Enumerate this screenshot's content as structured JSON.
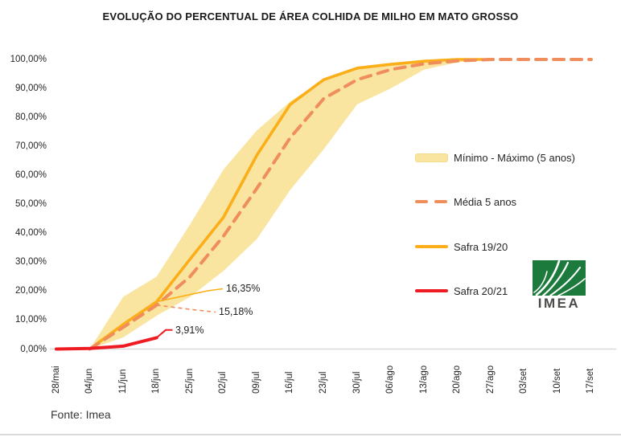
{
  "page": {
    "title": "EVOLUÇÃO DO PERCENTUAL DE ÁREA COLHIDA DE MILHO EM MATO GROSSO",
    "source": "Fonte: Imea"
  },
  "logo": {
    "text": "IMEA"
  },
  "legend": {
    "items": [
      {
        "label": "Mínimo - Máximo (5 anos)",
        "type": "band",
        "color": "#F9E4A0"
      },
      {
        "label": "Média 5 anos",
        "type": "dashed-line",
        "color": "#EF8E5C"
      },
      {
        "label": "Safra 19/20",
        "type": "line",
        "color": "#FBAE17"
      },
      {
        "label": "Safra 20/21",
        "type": "line",
        "color": "#EF1B23"
      }
    ]
  },
  "chart_data": {
    "type": "line",
    "title": "EVOLUÇÃO DO PERCENTUAL DE ÁREA COLHIDA DE MILHO EM MATO GROSSO",
    "xlabel": "",
    "ylabel": "",
    "ylim": [
      0,
      100
    ],
    "grid": false,
    "legend_position": "right-middle",
    "x_axis_label_rotation": 90,
    "categories": [
      "28/mai",
      "04/jun",
      "11/jun",
      "18/jun",
      "25/jun",
      "02/jul",
      "09/jul",
      "16/jul",
      "23/jul",
      "30/jul",
      "06/ago",
      "13/ago",
      "20/ago",
      "27/ago",
      "03/set",
      "10/set",
      "17/set"
    ],
    "y_tick_labels": [
      "100,00%",
      "90,00%",
      "80,00%",
      "70,00%",
      "60,00%",
      "50,00%",
      "40,00%",
      "30,00%",
      "20,00%",
      "10,00%",
      "0,00%"
    ],
    "series": [
      {
        "name": "Mínimo - Máximo (5 anos)",
        "type": "band",
        "color": "#F9E4A0",
        "max": [
          null,
          0,
          18,
          25,
          43,
          62,
          75.5,
          85.5,
          93,
          97,
          98.5,
          99.7,
          100,
          100,
          null,
          null,
          null
        ],
        "min": [
          null,
          0,
          4,
          11.5,
          18,
          27,
          38,
          55,
          69,
          84.5,
          90,
          96.5,
          99,
          100,
          null,
          null,
          null
        ]
      },
      {
        "name": "Média 5 anos",
        "type": "line",
        "style": "dashed",
        "color": "#EF8E5C",
        "values": [
          null,
          0,
          7.5,
          15.18,
          25,
          39,
          55.5,
          73,
          86.5,
          93,
          96.5,
          98.5,
          99.5,
          100,
          100,
          100,
          100
        ]
      },
      {
        "name": "Safra 19/20",
        "type": "line",
        "style": "solid",
        "color": "#FBAE17",
        "values": [
          null,
          0,
          8.5,
          16.35,
          31,
          45.5,
          67,
          84.5,
          93,
          97,
          98.3,
          99.4,
          100,
          100,
          null,
          null,
          null
        ]
      },
      {
        "name": "Safra 20/21",
        "type": "line",
        "style": "solid",
        "color": "#EF1B23",
        "values": [
          0,
          0.2,
          1.0,
          3.91,
          null,
          null,
          null,
          null,
          null,
          null,
          null,
          null,
          null,
          null,
          null,
          null,
          null
        ]
      }
    ],
    "annotations": [
      {
        "label": "16,35%",
        "series": "Safra 19/20",
        "category": "18/jun",
        "value": 16.35
      },
      {
        "label": "15,18%",
        "series": "Média 5 anos",
        "category": "18/jun",
        "value": 15.18
      },
      {
        "label": "3,91%",
        "series": "Safra 20/21",
        "category": "18/jun",
        "value": 3.91
      }
    ]
  }
}
